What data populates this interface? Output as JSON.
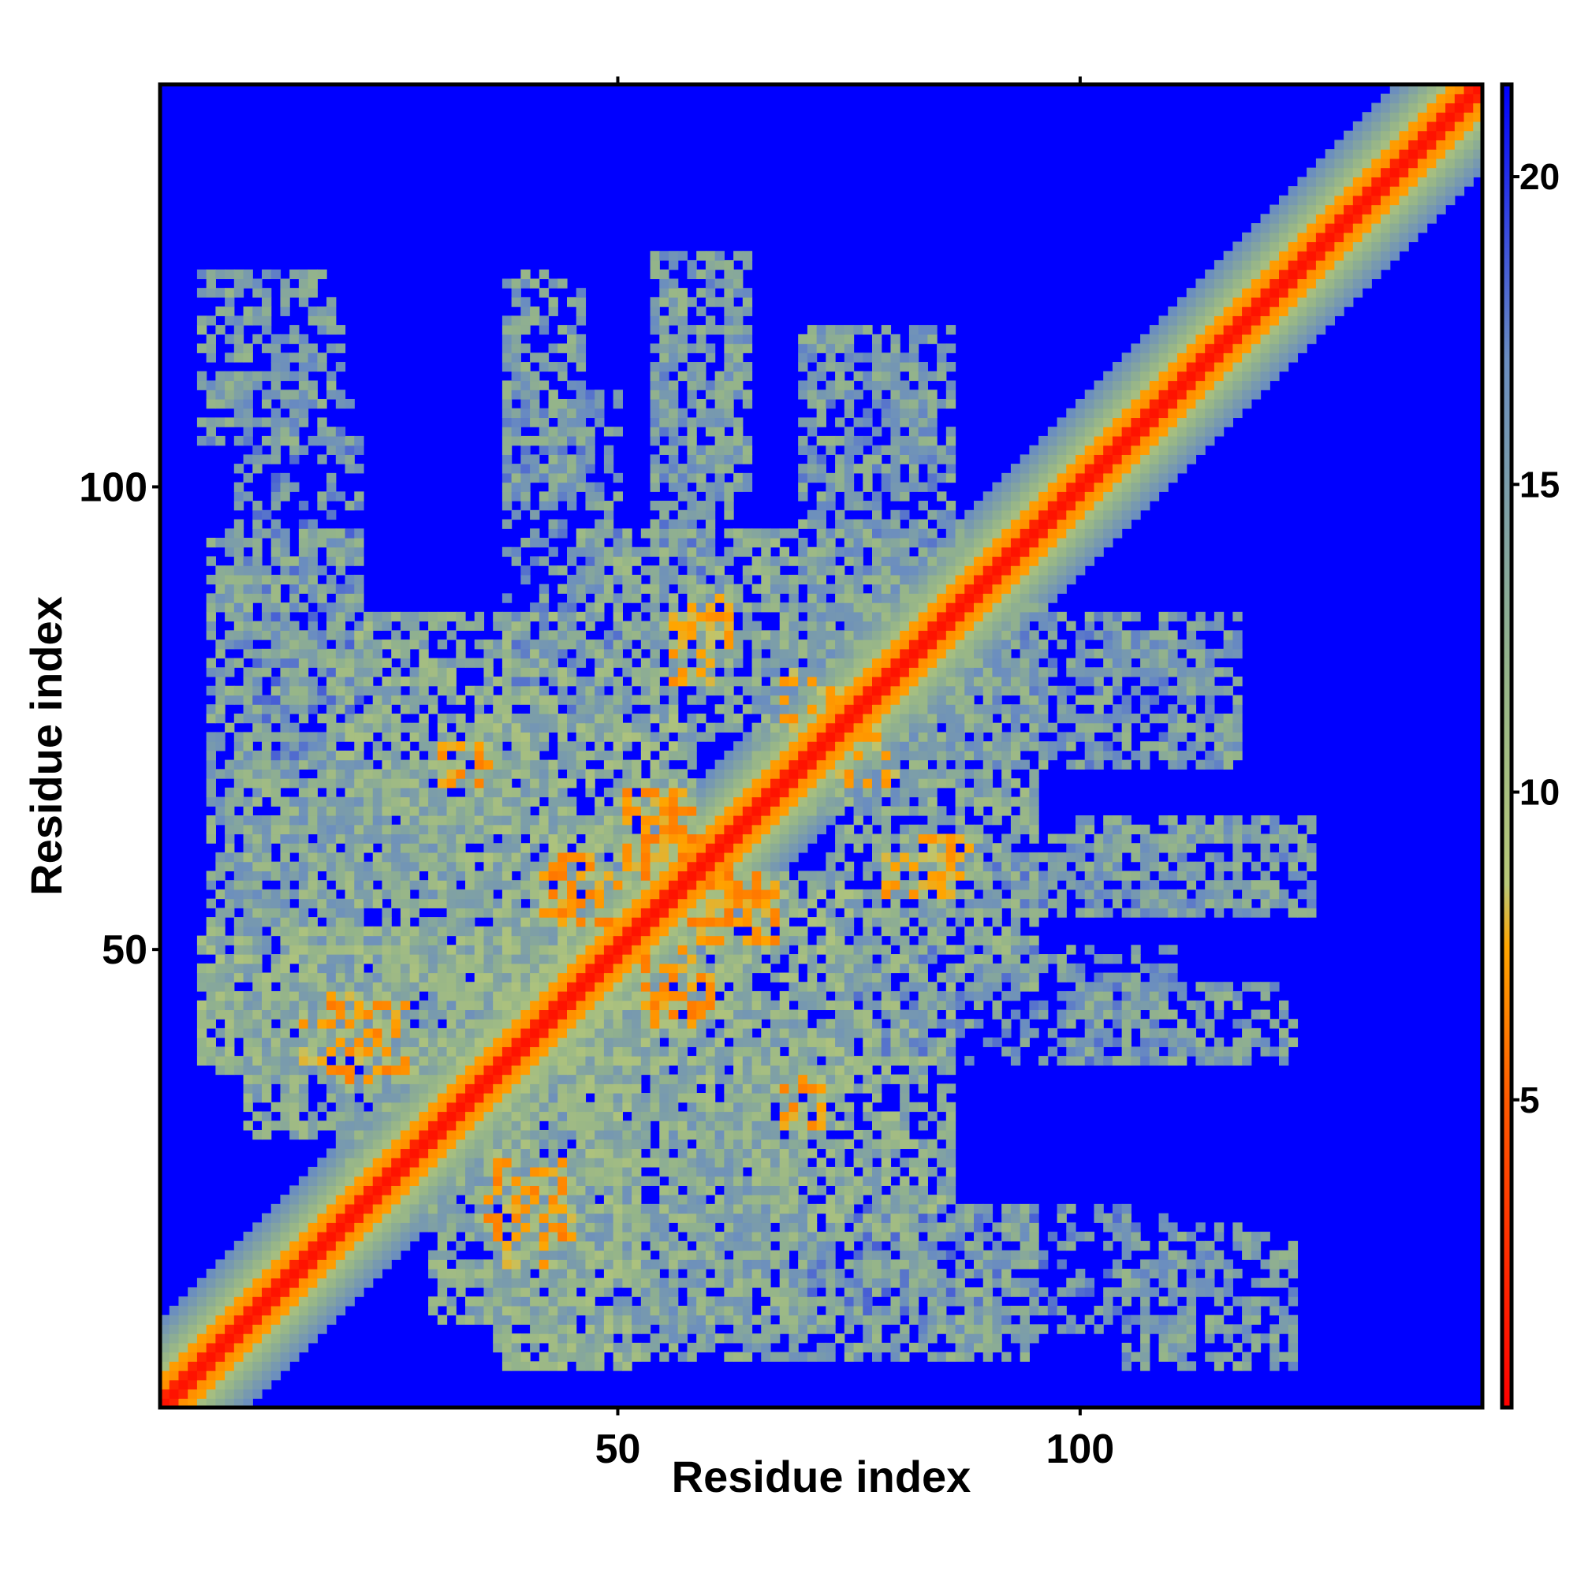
{
  "chart_data": {
    "type": "heatmap",
    "title": "",
    "xlabel": "Residue index",
    "ylabel": "Residue index",
    "n_residues": 143,
    "x_range": [
      1,
      143
    ],
    "y_range": [
      1,
      143
    ],
    "x_ticks": [
      50,
      100
    ],
    "y_ticks": [
      50,
      100
    ],
    "x_tick_labels": [
      "50",
      "100"
    ],
    "y_tick_labels": [
      "50",
      "100"
    ],
    "colorbar": {
      "label": "",
      "range": [
        0,
        21.5
      ],
      "ticks": [
        5,
        10,
        15,
        20
      ],
      "tick_labels": [
        "5",
        "10",
        "15",
        "20"
      ],
      "stops": [
        {
          "value": 0,
          "color": "#ff0000"
        },
        {
          "value": 5,
          "color": "#ff5a00"
        },
        {
          "value": 7.5,
          "color": "#ffa500"
        },
        {
          "value": 8.5,
          "color": "#b8c878"
        },
        {
          "value": 12,
          "color": "#94b48a"
        },
        {
          "value": 17,
          "color": "#6a8dc0"
        },
        {
          "value": 21.5,
          "color": "#0000ff"
        }
      ]
    },
    "background_value": 21.5,
    "background_color": "#0000ff",
    "cutoff_distance": 20,
    "diagonal_band": {
      "core_width": 1.5,
      "orange_width": 3,
      "halo_width": 9
    },
    "contact_blocks": [
      {
        "x": [
          5,
          20
        ],
        "y": [
          105,
          123
        ],
        "value": 14.5,
        "density": 0.55
      },
      {
        "x": [
          38,
          46
        ],
        "y": [
          100,
          123
        ],
        "value": 14.5,
        "density": 0.6
      },
      {
        "x": [
          54,
          64
        ],
        "y": [
          100,
          125
        ],
        "value": 14.5,
        "density": 0.6
      },
      {
        "x": [
          70,
          86
        ],
        "y": [
          86,
          117
        ],
        "value": 14.5,
        "density": 0.5
      },
      {
        "x": [
          6,
          22
        ],
        "y": [
          52,
          95
        ],
        "value": 14,
        "density": 0.7
      },
      {
        "x": [
          20,
          45
        ],
        "y": [
          55,
          86
        ],
        "value": 13,
        "density": 0.7
      },
      {
        "x": [
          46,
          68
        ],
        "y": [
          73,
          95
        ],
        "value": 13.5,
        "density": 0.65
      },
      {
        "x": [
          68,
          90
        ],
        "y": [
          65,
          96
        ],
        "value": 14,
        "density": 0.6
      },
      {
        "x": [
          90,
          115
        ],
        "y": [
          70,
          85
        ],
        "value": 15,
        "density": 0.45
      },
      {
        "x": [
          88,
          112
        ],
        "y": [
          54,
          62
        ],
        "value": 15,
        "density": 0.6
      },
      {
        "x": [
          5,
          40
        ],
        "y": [
          37,
          52
        ],
        "value": 12.5,
        "density": 0.8
      },
      {
        "x": [
          40,
          75
        ],
        "y": [
          35,
          58
        ],
        "value": 12.5,
        "density": 0.7
      },
      {
        "x": [
          75,
          110
        ],
        "y": [
          38,
          50
        ],
        "value": 15,
        "density": 0.5
      },
      {
        "x": [
          30,
          70
        ],
        "y": [
          10,
          35
        ],
        "value": 13.5,
        "density": 0.7
      },
      {
        "x": [
          68,
          110
        ],
        "y": [
          9,
          22
        ],
        "value": 15.5,
        "density": 0.4
      },
      {
        "x": [
          20,
          30
        ],
        "y": [
          20,
          40
        ],
        "value": 13.5,
        "density": 0.6
      }
    ],
    "hotspots": [
      {
        "x": [
          51,
          57
        ],
        "y": [
          59,
          67
        ],
        "value": 7
      },
      {
        "x": [
          58,
          65
        ],
        "y": [
          52,
          59
        ],
        "value": 7
      },
      {
        "x": [
          42,
          48
        ],
        "y": [
          54,
          60
        ],
        "value": 7
      },
      {
        "x": [
          53,
          59
        ],
        "y": [
          43,
          50
        ],
        "value": 7
      },
      {
        "x": [
          68,
          72
        ],
        "y": [
          31,
          36
        ],
        "value": 7
      },
      {
        "x": [
          36,
          44
        ],
        "y": [
          19,
          27
        ],
        "value": 7
      },
      {
        "x": [
          16,
          22
        ],
        "y": [
          38,
          45
        ],
        "value": 7.5
      },
      {
        "x": [
          74,
          80
        ],
        "y": [
          68,
          75
        ],
        "value": 7.5
      },
      {
        "x": [
          84,
          88
        ],
        "y": [
          58,
          62
        ],
        "value": 7.5
      },
      {
        "x": [
          56,
          62
        ],
        "y": [
          79,
          86
        ],
        "value": 7.5
      }
    ]
  }
}
